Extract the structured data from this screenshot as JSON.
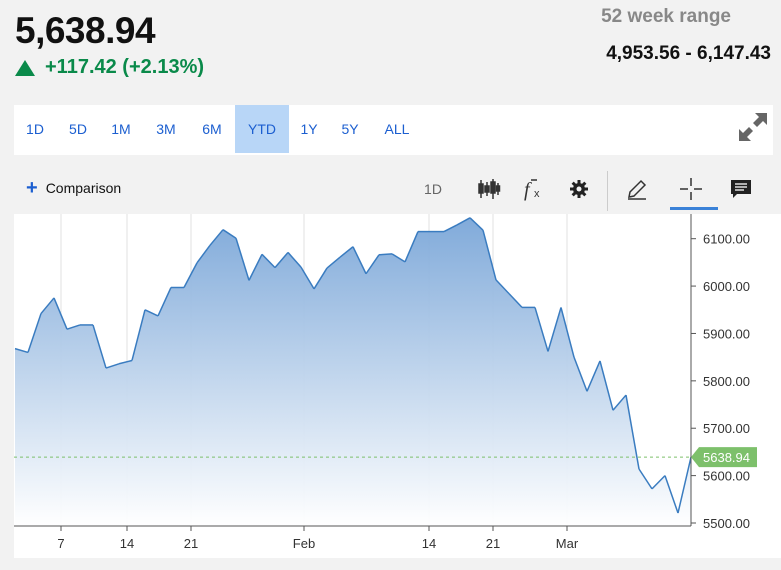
{
  "quote": {
    "price": "5,638.94",
    "change": "+117.42 (+2.13%)",
    "direction": "up",
    "range_label": "52 week range",
    "range_value": "4,953.56 - 6,147.43"
  },
  "periods": {
    "items": [
      "1D",
      "5D",
      "1M",
      "3M",
      "6M",
      "YTD",
      "1Y",
      "5Y",
      "ALL"
    ],
    "active": "YTD"
  },
  "toolbar": {
    "comparison_label": "Comparison",
    "interval_label": "1D",
    "tools": [
      "candlestick-icon",
      "function-icon",
      "settings-gear-icon",
      "pencil-icon",
      "crosshair-icon",
      "comment-icon"
    ]
  },
  "colors": {
    "up": "#0a8a4a",
    "accent": "#1c5fd0",
    "line": "#3a7cc0",
    "last_price_tag": "#7dc06b"
  },
  "chart_data": {
    "type": "area",
    "y_ticks": [
      "6100.00",
      "6000.00",
      "5900.00",
      "5800.00",
      "5700.00",
      "5600.00",
      "5500.00"
    ],
    "ylim": [
      5500,
      6150
    ],
    "x_ticks": [
      "7",
      "14",
      "21",
      "Feb",
      "14",
      "21",
      "Mar"
    ],
    "last_price_label": "5638.94",
    "values": [
      5868,
      5860,
      5942,
      5975,
      5909,
      5918,
      5918,
      5827,
      5836,
      5843,
      5950,
      5937,
      5997,
      5997,
      6049,
      6086,
      6119,
      6101,
      6012,
      6067,
      6039,
      6071,
      6040,
      5994,
      6038,
      6061,
      6083,
      6026,
      6066,
      6068,
      6051,
      6115,
      6115,
      6115,
      6129,
      6144,
      6118,
      6013,
      5984,
      5955,
      5955,
      5862,
      5955,
      5850,
      5778,
      5842,
      5738,
      5770,
      5614,
      5572,
      5600,
      5521,
      5639
    ]
  }
}
